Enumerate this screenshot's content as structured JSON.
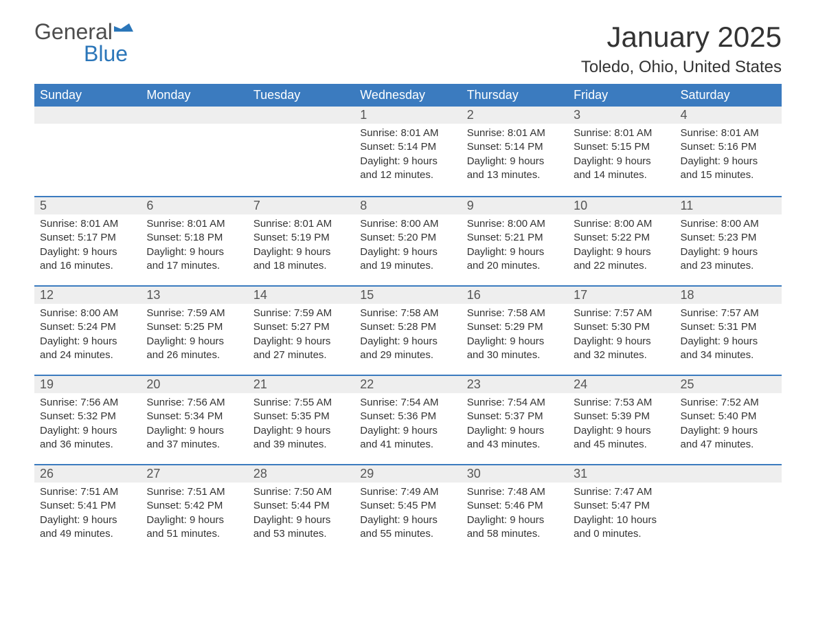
{
  "logo": {
    "general": "General",
    "blue": "Blue"
  },
  "title": "January 2025",
  "location": "Toledo, Ohio, United States",
  "colors": {
    "header_bg": "#3b7bbf",
    "header_text": "#ffffff",
    "daynum_bg": "#eeeeee",
    "rule": "#3b7bbf",
    "body_text": "#333333",
    "logo_gray": "#4d4d4d",
    "logo_blue": "#2b76b9",
    "background": "#ffffff"
  },
  "fonts": {
    "title_size_pt": 32,
    "location_size_pt": 18,
    "header_size_pt": 14,
    "daynum_size_pt": 14,
    "body_size_pt": 11
  },
  "grid": {
    "columns": 7,
    "rows": 5
  },
  "day_headers": [
    "Sunday",
    "Monday",
    "Tuesday",
    "Wednesday",
    "Thursday",
    "Friday",
    "Saturday"
  ],
  "weeks": [
    [
      {
        "empty": true
      },
      {
        "empty": true
      },
      {
        "empty": true
      },
      {
        "day": "1",
        "sunrise": "Sunrise: 8:01 AM",
        "sunset": "Sunset: 5:14 PM",
        "daylight1": "Daylight: 9 hours",
        "daylight2": "and 12 minutes."
      },
      {
        "day": "2",
        "sunrise": "Sunrise: 8:01 AM",
        "sunset": "Sunset: 5:14 PM",
        "daylight1": "Daylight: 9 hours",
        "daylight2": "and 13 minutes."
      },
      {
        "day": "3",
        "sunrise": "Sunrise: 8:01 AM",
        "sunset": "Sunset: 5:15 PM",
        "daylight1": "Daylight: 9 hours",
        "daylight2": "and 14 minutes."
      },
      {
        "day": "4",
        "sunrise": "Sunrise: 8:01 AM",
        "sunset": "Sunset: 5:16 PM",
        "daylight1": "Daylight: 9 hours",
        "daylight2": "and 15 minutes."
      }
    ],
    [
      {
        "day": "5",
        "sunrise": "Sunrise: 8:01 AM",
        "sunset": "Sunset: 5:17 PM",
        "daylight1": "Daylight: 9 hours",
        "daylight2": "and 16 minutes."
      },
      {
        "day": "6",
        "sunrise": "Sunrise: 8:01 AM",
        "sunset": "Sunset: 5:18 PM",
        "daylight1": "Daylight: 9 hours",
        "daylight2": "and 17 minutes."
      },
      {
        "day": "7",
        "sunrise": "Sunrise: 8:01 AM",
        "sunset": "Sunset: 5:19 PM",
        "daylight1": "Daylight: 9 hours",
        "daylight2": "and 18 minutes."
      },
      {
        "day": "8",
        "sunrise": "Sunrise: 8:00 AM",
        "sunset": "Sunset: 5:20 PM",
        "daylight1": "Daylight: 9 hours",
        "daylight2": "and 19 minutes."
      },
      {
        "day": "9",
        "sunrise": "Sunrise: 8:00 AM",
        "sunset": "Sunset: 5:21 PM",
        "daylight1": "Daylight: 9 hours",
        "daylight2": "and 20 minutes."
      },
      {
        "day": "10",
        "sunrise": "Sunrise: 8:00 AM",
        "sunset": "Sunset: 5:22 PM",
        "daylight1": "Daylight: 9 hours",
        "daylight2": "and 22 minutes."
      },
      {
        "day": "11",
        "sunrise": "Sunrise: 8:00 AM",
        "sunset": "Sunset: 5:23 PM",
        "daylight1": "Daylight: 9 hours",
        "daylight2": "and 23 minutes."
      }
    ],
    [
      {
        "day": "12",
        "sunrise": "Sunrise: 8:00 AM",
        "sunset": "Sunset: 5:24 PM",
        "daylight1": "Daylight: 9 hours",
        "daylight2": "and 24 minutes."
      },
      {
        "day": "13",
        "sunrise": "Sunrise: 7:59 AM",
        "sunset": "Sunset: 5:25 PM",
        "daylight1": "Daylight: 9 hours",
        "daylight2": "and 26 minutes."
      },
      {
        "day": "14",
        "sunrise": "Sunrise: 7:59 AM",
        "sunset": "Sunset: 5:27 PM",
        "daylight1": "Daylight: 9 hours",
        "daylight2": "and 27 minutes."
      },
      {
        "day": "15",
        "sunrise": "Sunrise: 7:58 AM",
        "sunset": "Sunset: 5:28 PM",
        "daylight1": "Daylight: 9 hours",
        "daylight2": "and 29 minutes."
      },
      {
        "day": "16",
        "sunrise": "Sunrise: 7:58 AM",
        "sunset": "Sunset: 5:29 PM",
        "daylight1": "Daylight: 9 hours",
        "daylight2": "and 30 minutes."
      },
      {
        "day": "17",
        "sunrise": "Sunrise: 7:57 AM",
        "sunset": "Sunset: 5:30 PM",
        "daylight1": "Daylight: 9 hours",
        "daylight2": "and 32 minutes."
      },
      {
        "day": "18",
        "sunrise": "Sunrise: 7:57 AM",
        "sunset": "Sunset: 5:31 PM",
        "daylight1": "Daylight: 9 hours",
        "daylight2": "and 34 minutes."
      }
    ],
    [
      {
        "day": "19",
        "sunrise": "Sunrise: 7:56 AM",
        "sunset": "Sunset: 5:32 PM",
        "daylight1": "Daylight: 9 hours",
        "daylight2": "and 36 minutes."
      },
      {
        "day": "20",
        "sunrise": "Sunrise: 7:56 AM",
        "sunset": "Sunset: 5:34 PM",
        "daylight1": "Daylight: 9 hours",
        "daylight2": "and 37 minutes."
      },
      {
        "day": "21",
        "sunrise": "Sunrise: 7:55 AM",
        "sunset": "Sunset: 5:35 PM",
        "daylight1": "Daylight: 9 hours",
        "daylight2": "and 39 minutes."
      },
      {
        "day": "22",
        "sunrise": "Sunrise: 7:54 AM",
        "sunset": "Sunset: 5:36 PM",
        "daylight1": "Daylight: 9 hours",
        "daylight2": "and 41 minutes."
      },
      {
        "day": "23",
        "sunrise": "Sunrise: 7:54 AM",
        "sunset": "Sunset: 5:37 PM",
        "daylight1": "Daylight: 9 hours",
        "daylight2": "and 43 minutes."
      },
      {
        "day": "24",
        "sunrise": "Sunrise: 7:53 AM",
        "sunset": "Sunset: 5:39 PM",
        "daylight1": "Daylight: 9 hours",
        "daylight2": "and 45 minutes."
      },
      {
        "day": "25",
        "sunrise": "Sunrise: 7:52 AM",
        "sunset": "Sunset: 5:40 PM",
        "daylight1": "Daylight: 9 hours",
        "daylight2": "and 47 minutes."
      }
    ],
    [
      {
        "day": "26",
        "sunrise": "Sunrise: 7:51 AM",
        "sunset": "Sunset: 5:41 PM",
        "daylight1": "Daylight: 9 hours",
        "daylight2": "and 49 minutes."
      },
      {
        "day": "27",
        "sunrise": "Sunrise: 7:51 AM",
        "sunset": "Sunset: 5:42 PM",
        "daylight1": "Daylight: 9 hours",
        "daylight2": "and 51 minutes."
      },
      {
        "day": "28",
        "sunrise": "Sunrise: 7:50 AM",
        "sunset": "Sunset: 5:44 PM",
        "daylight1": "Daylight: 9 hours",
        "daylight2": "and 53 minutes."
      },
      {
        "day": "29",
        "sunrise": "Sunrise: 7:49 AM",
        "sunset": "Sunset: 5:45 PM",
        "daylight1": "Daylight: 9 hours",
        "daylight2": "and 55 minutes."
      },
      {
        "day": "30",
        "sunrise": "Sunrise: 7:48 AM",
        "sunset": "Sunset: 5:46 PM",
        "daylight1": "Daylight: 9 hours",
        "daylight2": "and 58 minutes."
      },
      {
        "day": "31",
        "sunrise": "Sunrise: 7:47 AM",
        "sunset": "Sunset: 5:47 PM",
        "daylight1": "Daylight: 10 hours",
        "daylight2": "and 0 minutes."
      },
      {
        "empty": true
      }
    ]
  ]
}
